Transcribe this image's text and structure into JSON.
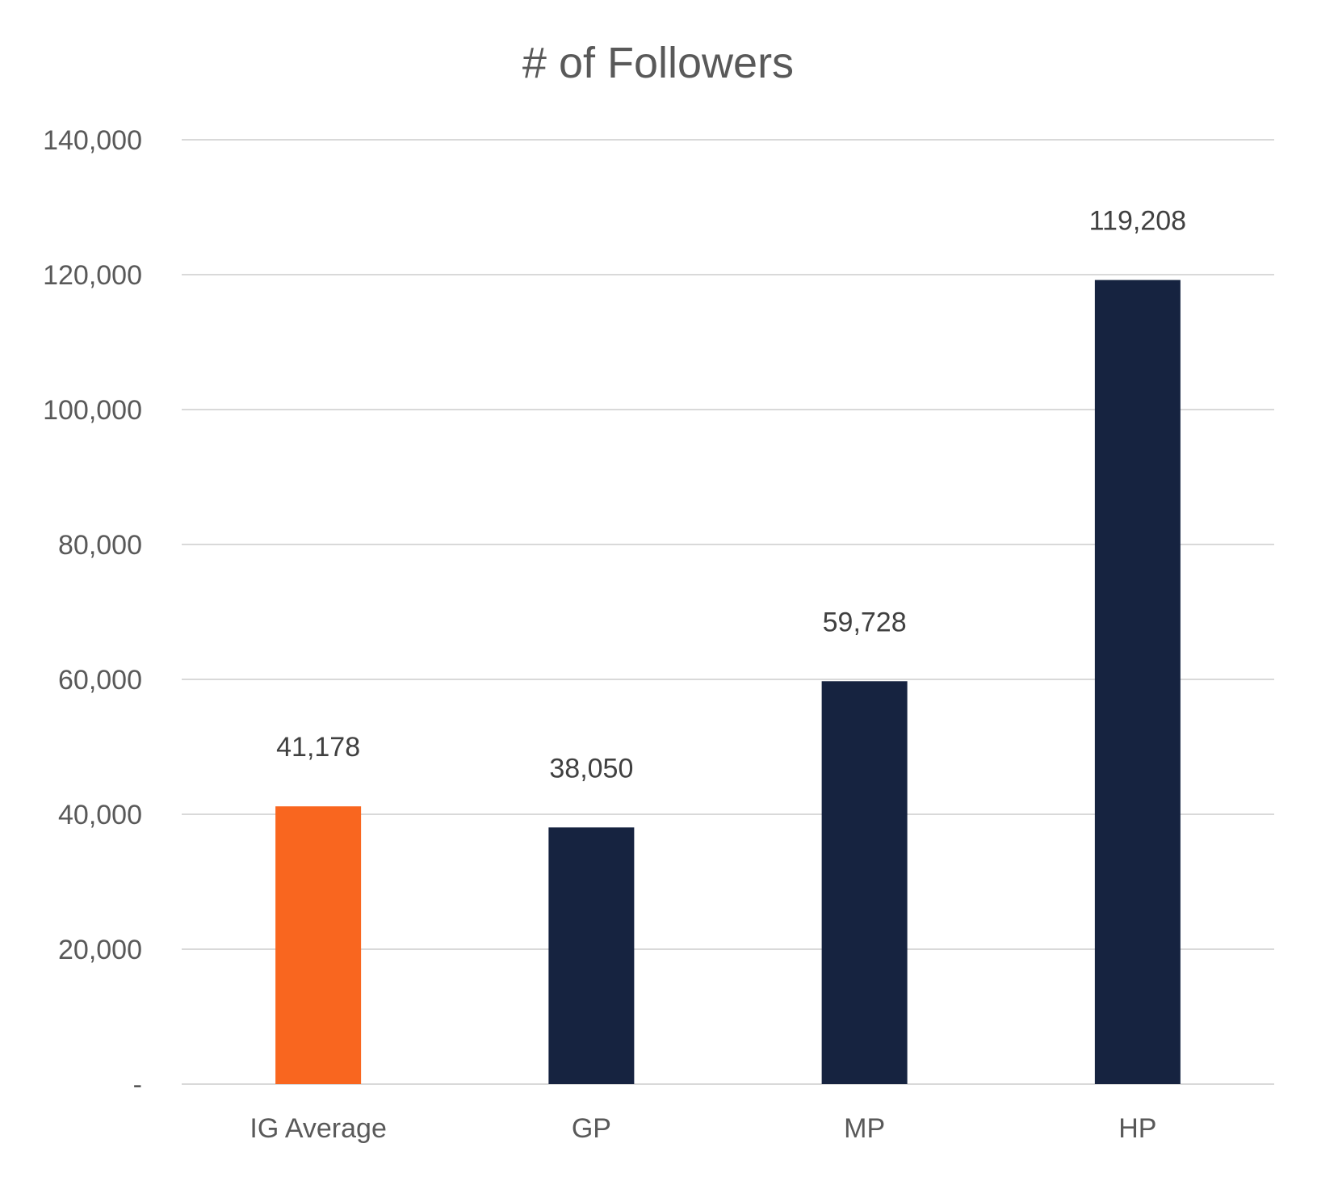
{
  "chart_data": {
    "type": "bar",
    "title": "# of Followers",
    "xlabel": "",
    "ylabel": "",
    "categories": [
      "IG Average",
      "GP",
      "MP",
      "HP"
    ],
    "values": [
      41178,
      38050,
      59728,
      119208
    ],
    "data_labels": [
      "41,178",
      "38,050",
      "59,728",
      "119,208"
    ],
    "bar_colors": [
      "#f9661f",
      "#162340",
      "#162340",
      "#162340"
    ],
    "ylim": [
      0,
      140000
    ],
    "yticks": [
      0,
      20000,
      40000,
      60000,
      80000,
      100000,
      120000,
      140000
    ],
    "ytick_labels": [
      "-",
      "20,000",
      "40,000",
      "60,000",
      "80,000",
      "100,000",
      "120,000",
      "140,000"
    ],
    "grid": true,
    "legend": "none"
  }
}
